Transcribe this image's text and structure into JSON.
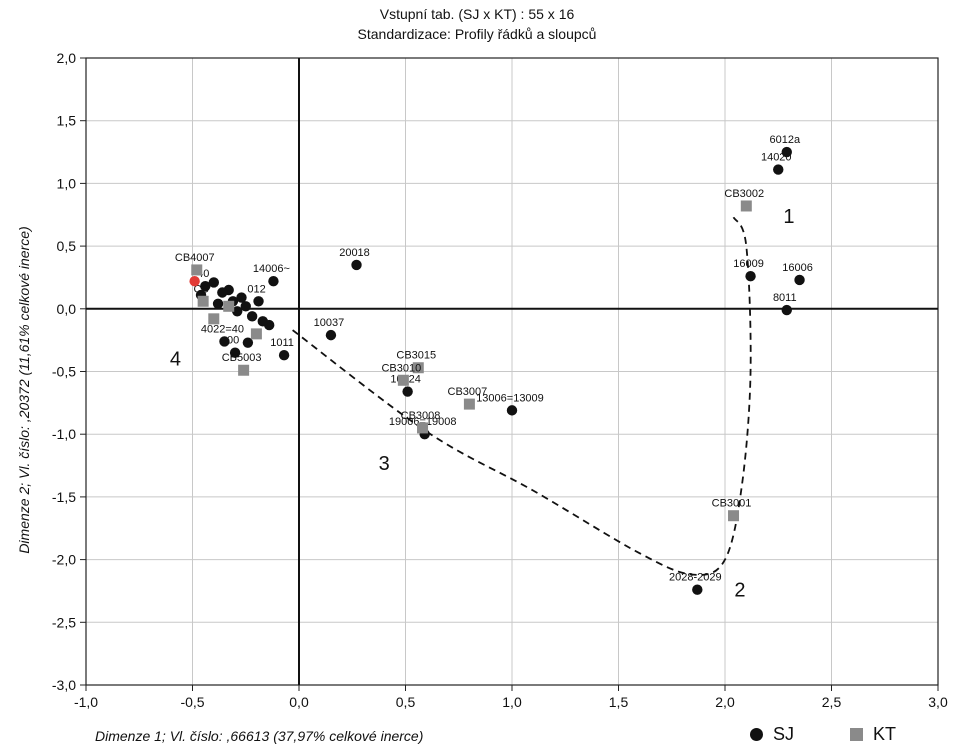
{
  "chart_data": {
    "type": "scatter",
    "title": "Vstupní tab. (SJ x KT) : 55 x 16",
    "subtitle": "Standardizace:   Profily řádků a sloupců",
    "xlabel": "Dimenze   1; Vl. číslo: ,66613 (37,97% celkové inerce)",
    "ylabel": "Dimenze   2; Vl. číslo: ,20372 (11,61% celkové inerce)",
    "xlim": [
      -1.0,
      3.0
    ],
    "ylim": [
      -3.0,
      2.0
    ],
    "xticks": [
      "-1,0",
      "-0,5",
      "0,0",
      "0,5",
      "1,0",
      "1,5",
      "2,0",
      "2,5",
      "3,0"
    ],
    "yticks": [
      "2,0",
      "1,5",
      "1,0",
      "0,5",
      "0,0",
      "-0,5",
      "-1,0",
      "-1,5",
      "-2,0",
      "-2,5",
      "-3,0"
    ],
    "grid": true,
    "legend_position": "bottom-right",
    "series": [
      {
        "name": "SJ",
        "marker": "circle",
        "color": "#111111",
        "points": [
          {
            "x": 2.29,
            "y": 1.25,
            "label": "6012a"
          },
          {
            "x": 2.25,
            "y": 1.11,
            "label": "14020"
          },
          {
            "x": 2.12,
            "y": 0.26,
            "label": "16009"
          },
          {
            "x": 2.35,
            "y": 0.23,
            "label": "16006"
          },
          {
            "x": 2.29,
            "y": -0.01,
            "label": "8011"
          },
          {
            "x": 0.27,
            "y": 0.35,
            "label": "20018"
          },
          {
            "x": 0.15,
            "y": -0.21,
            "label": "10037"
          },
          {
            "x": 0.51,
            "y": -0.66,
            "label": "10024"
          },
          {
            "x": 0.59,
            "y": -1.0,
            "label": "19006=19008"
          },
          {
            "x": 1.0,
            "y": -0.81,
            "label": "13006=13009"
          },
          {
            "x": 1.87,
            "y": -2.24,
            "label": "2028-2029"
          },
          {
            "x": -0.12,
            "y": 0.22,
            "label": "14006~"
          },
          {
            "x": -0.07,
            "y": -0.37,
            "label": "1011"
          },
          {
            "x": -0.35,
            "y": -0.26,
            "label": "4022=40"
          },
          {
            "x": -0.3,
            "y": -0.35,
            "label": "00"
          },
          {
            "x": -0.19,
            "y": 0.06,
            "label": "012"
          },
          {
            "x": -0.14,
            "y": -0.13,
            "label": ""
          },
          {
            "x": -0.24,
            "y": -0.27,
            "label": ""
          },
          {
            "x": -0.27,
            "y": 0.09,
            "label": ""
          },
          {
            "x": -0.33,
            "y": 0.15,
            "label": ""
          },
          {
            "x": -0.38,
            "y": 0.04,
            "label": ""
          },
          {
            "x": -0.22,
            "y": -0.06,
            "label": ""
          },
          {
            "x": -0.29,
            "y": -0.02,
            "label": ""
          },
          {
            "x": -0.44,
            "y": 0.18,
            "label": "40"
          },
          {
            "x": -0.4,
            "y": 0.21,
            "label": ""
          },
          {
            "x": -0.46,
            "y": 0.11,
            "label": ""
          },
          {
            "x": -0.36,
            "y": 0.13,
            "label": ""
          },
          {
            "x": -0.25,
            "y": 0.02,
            "label": ""
          },
          {
            "x": -0.31,
            "y": 0.06,
            "label": ""
          },
          {
            "x": -0.17,
            "y": -0.1,
            "label": ""
          }
        ]
      },
      {
        "name": "KT",
        "marker": "square",
        "color": "#8a8a8a",
        "points": [
          {
            "x": 2.1,
            "y": 0.82,
            "label": "CB3002"
          },
          {
            "x": 2.04,
            "y": -1.65,
            "label": "CB3001"
          },
          {
            "x": 0.56,
            "y": -0.47,
            "label": "CB3015"
          },
          {
            "x": 0.49,
            "y": -0.57,
            "label": "CB3010"
          },
          {
            "x": 0.8,
            "y": -0.76,
            "label": "CB3007"
          },
          {
            "x": 0.58,
            "y": -0.95,
            "label": "CB3008"
          },
          {
            "x": -0.26,
            "y": -0.49,
            "label": "CB5003"
          },
          {
            "x": -0.48,
            "y": 0.31,
            "label": "CB4007"
          },
          {
            "x": -0.45,
            "y": 0.06,
            "label": "CB"
          },
          {
            "x": -0.4,
            "y": -0.08,
            "label": ""
          },
          {
            "x": -0.33,
            "y": 0.02,
            "label": ""
          },
          {
            "x": -0.2,
            "y": -0.2,
            "label": ""
          }
        ]
      },
      {
        "name": "",
        "marker": "circle",
        "color": "#e23b36",
        "points": [
          {
            "x": -0.49,
            "y": 0.22,
            "label": ""
          }
        ]
      }
    ],
    "annotations": [
      {
        "text": "1",
        "x": 2.3,
        "y": 0.75
      },
      {
        "text": "2",
        "x": 2.07,
        "y": -2.23
      },
      {
        "text": "3",
        "x": 0.4,
        "y": -1.22
      },
      {
        "text": "4",
        "x": -0.58,
        "y": -0.39
      }
    ],
    "dashed_curve": [
      [
        -0.03,
        -0.17
      ],
      [
        0.6,
        -0.98
      ],
      [
        1.1,
        -1.45
      ],
      [
        1.6,
        -1.95
      ],
      [
        1.85,
        -2.12
      ],
      [
        2.0,
        -2.0
      ],
      [
        2.08,
        -1.4
      ],
      [
        2.12,
        -0.5
      ],
      [
        2.1,
        0.5
      ],
      [
        2.04,
        0.73
      ]
    ]
  },
  "legend": {
    "items": [
      {
        "label": "SJ",
        "type": "circle"
      },
      {
        "label": "KT",
        "type": "square"
      }
    ]
  }
}
